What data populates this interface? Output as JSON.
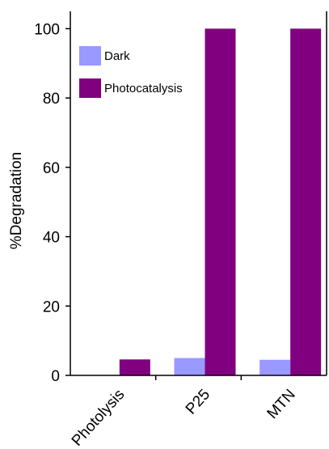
{
  "chart_data": {
    "type": "bar",
    "title": "",
    "xlabel": "",
    "ylabel": "%Degradation",
    "ylim": [
      0,
      105
    ],
    "yticks": [
      0,
      20,
      40,
      60,
      80,
      100
    ],
    "categories": [
      "Photolysis",
      "P25",
      "MTN"
    ],
    "series": [
      {
        "name": "Dark",
        "color": "#9999ff",
        "values": [
          null,
          5,
          4.5
        ]
      },
      {
        "name": "Photocatalysis",
        "color": "#800080",
        "values": [
          4.6,
          100,
          100
        ]
      }
    ],
    "legend_position": "top-left",
    "grid": false
  }
}
